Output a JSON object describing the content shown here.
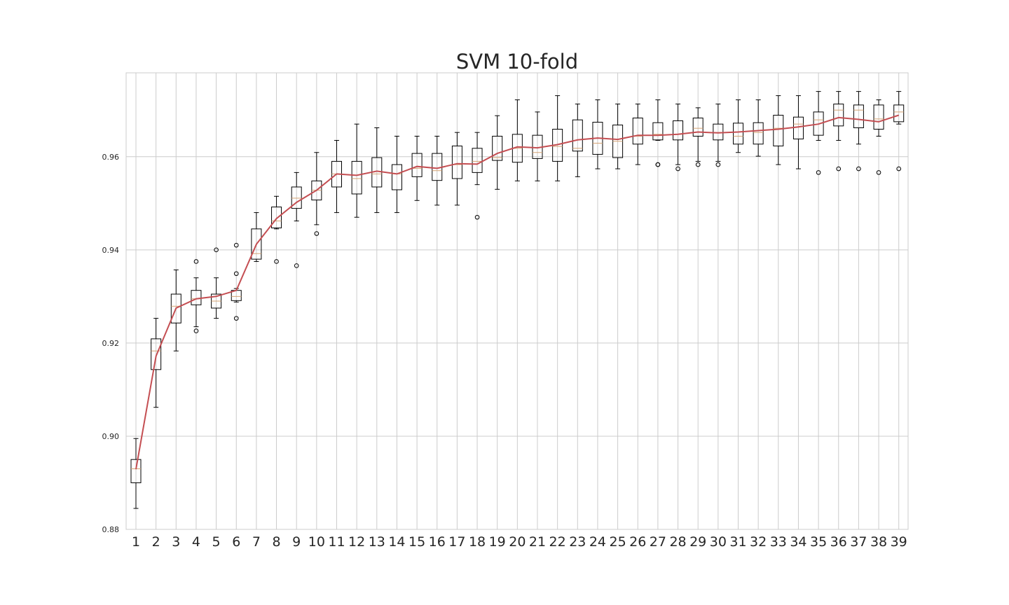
{
  "chart_data": {
    "type": "boxplot",
    "title": "SVM 10-fold",
    "xlabel": "",
    "ylabel": "",
    "ylim": [
      0.88,
      0.978
    ],
    "yticks": [
      "0.88",
      "0.90",
      "0.92",
      "0.94",
      "0.96"
    ],
    "grid": true,
    "categories": [
      "1",
      "2",
      "3",
      "4",
      "5",
      "6",
      "7",
      "8",
      "9",
      "10",
      "11",
      "12",
      "13",
      "14",
      "15",
      "16",
      "17",
      "18",
      "19",
      "20",
      "21",
      "22",
      "23",
      "24",
      "25",
      "26",
      "27",
      "28",
      "29",
      "30",
      "31",
      "32",
      "33",
      "34",
      "35",
      "36",
      "37",
      "38",
      "39"
    ],
    "boxes": [
      {
        "whislo": 0.8845,
        "q1": 0.89,
        "med": 0.893,
        "q3": 0.895,
        "whishi": 0.8995,
        "fliers": []
      },
      {
        "whislo": 0.9062,
        "q1": 0.9143,
        "med": 0.9183,
        "q3": 0.9209,
        "whishi": 0.9253,
        "fliers": []
      },
      {
        "whislo": 0.9183,
        "q1": 0.9243,
        "med": 0.9279,
        "q3": 0.9305,
        "whishi": 0.9357,
        "fliers": []
      },
      {
        "whislo": 0.9235,
        "q1": 0.9282,
        "med": 0.9295,
        "q3": 0.9313,
        "whishi": 0.934,
        "fliers": [
          0.9375,
          0.9226
        ]
      },
      {
        "whislo": 0.9253,
        "q1": 0.9275,
        "med": 0.929,
        "q3": 0.9305,
        "whishi": 0.934,
        "fliers": [
          0.94
        ]
      },
      {
        "whislo": 0.9288,
        "q1": 0.9291,
        "med": 0.93,
        "q3": 0.9313,
        "whishi": 0.9317,
        "fliers": [
          0.941,
          0.9349,
          0.9253
        ]
      },
      {
        "whislo": 0.9375,
        "q1": 0.938,
        "med": 0.9392,
        "q3": 0.9445,
        "whishi": 0.948,
        "fliers": []
      },
      {
        "whislo": 0.9445,
        "q1": 0.9447,
        "med": 0.9462,
        "q3": 0.9492,
        "whishi": 0.9515,
        "fliers": [
          0.9375
        ]
      },
      {
        "whislo": 0.9462,
        "q1": 0.9489,
        "med": 0.9511,
        "q3": 0.9535,
        "whishi": 0.9566,
        "fliers": [
          0.9366
        ]
      },
      {
        "whislo": 0.9454,
        "q1": 0.9507,
        "med": 0.9528,
        "q3": 0.9548,
        "whishi": 0.9609,
        "fliers": [
          0.9435
        ]
      },
      {
        "whislo": 0.948,
        "q1": 0.9535,
        "med": 0.9563,
        "q3": 0.959,
        "whishi": 0.9635,
        "fliers": []
      },
      {
        "whislo": 0.947,
        "q1": 0.952,
        "med": 0.9553,
        "q3": 0.959,
        "whishi": 0.967,
        "fliers": []
      },
      {
        "whislo": 0.948,
        "q1": 0.9535,
        "med": 0.9563,
        "q3": 0.9598,
        "whishi": 0.9662,
        "fliers": []
      },
      {
        "whislo": 0.948,
        "q1": 0.9529,
        "med": 0.9563,
        "q3": 0.9583,
        "whishi": 0.9644,
        "fliers": []
      },
      {
        "whislo": 0.9506,
        "q1": 0.9557,
        "med": 0.9575,
        "q3": 0.9607,
        "whishi": 0.9644,
        "fliers": []
      },
      {
        "whislo": 0.9496,
        "q1": 0.9549,
        "med": 0.957,
        "q3": 0.9607,
        "whishi": 0.9644,
        "fliers": []
      },
      {
        "whislo": 0.9496,
        "q1": 0.9553,
        "med": 0.9583,
        "q3": 0.9623,
        "whishi": 0.9652,
        "fliers": []
      },
      {
        "whislo": 0.954,
        "q1": 0.9566,
        "med": 0.959,
        "q3": 0.9618,
        "whishi": 0.9652,
        "fliers": [
          0.947
        ]
      },
      {
        "whislo": 0.953,
        "q1": 0.9592,
        "med": 0.9598,
        "q3": 0.9644,
        "whishi": 0.9688,
        "fliers": []
      },
      {
        "whislo": 0.9548,
        "q1": 0.9588,
        "med": 0.9618,
        "q3": 0.9648,
        "whishi": 0.9722,
        "fliers": []
      },
      {
        "whislo": 0.9548,
        "q1": 0.9596,
        "med": 0.9609,
        "q3": 0.9646,
        "whishi": 0.9696,
        "fliers": []
      },
      {
        "whislo": 0.9548,
        "q1": 0.959,
        "med": 0.9622,
        "q3": 0.9659,
        "whishi": 0.9731,
        "fliers": []
      },
      {
        "whislo": 0.9557,
        "q1": 0.9612,
        "med": 0.9618,
        "q3": 0.9679,
        "whishi": 0.9713,
        "fliers": []
      },
      {
        "whislo": 0.9574,
        "q1": 0.9605,
        "med": 0.9629,
        "q3": 0.9674,
        "whishi": 0.9722,
        "fliers": []
      },
      {
        "whislo": 0.9574,
        "q1": 0.9598,
        "med": 0.9633,
        "q3": 0.9668,
        "whishi": 0.9713,
        "fliers": []
      },
      {
        "whislo": 0.9583,
        "q1": 0.9627,
        "med": 0.9644,
        "q3": 0.9683,
        "whishi": 0.9713,
        "fliers": []
      },
      {
        "whislo": 0.9635,
        "q1": 0.9636,
        "med": 0.9648,
        "q3": 0.9673,
        "whishi": 0.9722,
        "fliers": [
          0.9583,
          0.9583
        ]
      },
      {
        "whislo": 0.9583,
        "q1": 0.9636,
        "med": 0.9648,
        "q3": 0.9677,
        "whishi": 0.9713,
        "fliers": [
          0.9574
        ]
      },
      {
        "whislo": 0.959,
        "q1": 0.9644,
        "med": 0.9661,
        "q3": 0.9683,
        "whishi": 0.9705,
        "fliers": [
          0.9583
        ]
      },
      {
        "whislo": 0.959,
        "q1": 0.9636,
        "med": 0.9652,
        "q3": 0.967,
        "whishi": 0.9713,
        "fliers": [
          0.9583
        ]
      },
      {
        "whislo": 0.9609,
        "q1": 0.9627,
        "med": 0.9644,
        "q3": 0.9672,
        "whishi": 0.9722,
        "fliers": []
      },
      {
        "whislo": 0.9601,
        "q1": 0.9627,
        "med": 0.9652,
        "q3": 0.9673,
        "whishi": 0.9722,
        "fliers": []
      },
      {
        "whislo": 0.9583,
        "q1": 0.9623,
        "med": 0.9661,
        "q3": 0.9689,
        "whishi": 0.9731,
        "fliers": []
      },
      {
        "whislo": 0.9574,
        "q1": 0.9638,
        "med": 0.967,
        "q3": 0.9685,
        "whishi": 0.9731,
        "fliers": []
      },
      {
        "whislo": 0.9635,
        "q1": 0.9646,
        "med": 0.9679,
        "q3": 0.9696,
        "whishi": 0.974,
        "fliers": [
          0.9566
        ]
      },
      {
        "whislo": 0.9635,
        "q1": 0.9666,
        "med": 0.97,
        "q3": 0.9713,
        "whishi": 0.974,
        "fliers": [
          0.9574
        ]
      },
      {
        "whislo": 0.9627,
        "q1": 0.9662,
        "med": 0.97,
        "q3": 0.9711,
        "whishi": 0.974,
        "fliers": [
          0.9574
        ]
      },
      {
        "whislo": 0.9644,
        "q1": 0.9659,
        "med": 0.9681,
        "q3": 0.9711,
        "whishi": 0.9722,
        "fliers": [
          0.9566
        ]
      },
      {
        "whislo": 0.967,
        "q1": 0.9675,
        "med": 0.9696,
        "q3": 0.9711,
        "whishi": 0.974,
        "fliers": [
          0.9574
        ]
      }
    ],
    "mean_line": {
      "color": "#c44e52",
      "values": [
        0.8929,
        0.9172,
        0.9275,
        0.9295,
        0.93,
        0.9313,
        0.9412,
        0.9467,
        0.9502,
        0.9528,
        0.9563,
        0.956,
        0.9569,
        0.9563,
        0.9579,
        0.9575,
        0.9585,
        0.9584,
        0.9607,
        0.9621,
        0.9619,
        0.9626,
        0.9636,
        0.964,
        0.9637,
        0.9646,
        0.9646,
        0.9648,
        0.9653,
        0.9651,
        0.9653,
        0.9656,
        0.9659,
        0.9664,
        0.967,
        0.9684,
        0.968,
        0.9675,
        0.9689
      ]
    },
    "colors": {
      "box": "#000000",
      "median": "#d4a373",
      "grid": "#cccccc",
      "mean_line": "#c44e52"
    }
  }
}
